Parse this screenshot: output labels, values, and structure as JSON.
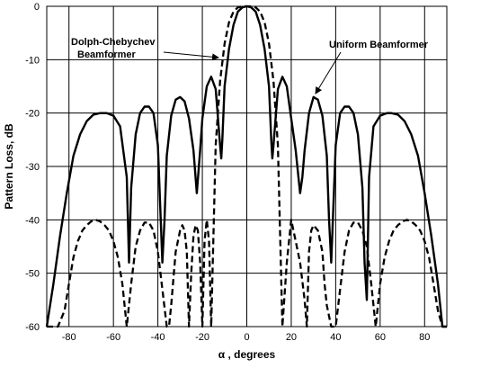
{
  "chart_data": {
    "type": "line",
    "title": "",
    "xlabel": "α , degrees",
    "ylabel": "Pattern Loss, dB",
    "xlim": [
      -90,
      90
    ],
    "ylim": [
      -60,
      0
    ],
    "xticks": [
      -80,
      -60,
      -40,
      -20,
      0,
      20,
      40,
      60,
      80
    ],
    "yticks": [
      0,
      -10,
      -20,
      -30,
      -40,
      -50,
      -60
    ],
    "grid": true,
    "legend": "none",
    "series": [
      {
        "name": "Uniform Beamformer",
        "style": "solid",
        "color": "#000000",
        "x": [
          -90,
          -87,
          -84,
          -81,
          -78,
          -75,
          -72,
          -69,
          -66,
          -63,
          -60,
          -57,
          -54,
          -53,
          -52,
          -50,
          -48,
          -46,
          -44,
          -42,
          -40,
          -38,
          -37,
          -36,
          -34,
          -32,
          -30,
          -28,
          -26,
          -24,
          -22.5,
          -21,
          -20,
          -18,
          -16,
          -14,
          -12,
          -11.5,
          -11,
          -10,
          -8,
          -6,
          -4,
          -2,
          0,
          2,
          4,
          6,
          8,
          10,
          11,
          11.5,
          12,
          14,
          16,
          18,
          20,
          22,
          24,
          25,
          26,
          28,
          30,
          32,
          34,
          36,
          37,
          38,
          40,
          42,
          44,
          46,
          48,
          50,
          52,
          53,
          54,
          55,
          57,
          60,
          63,
          65,
          68,
          71,
          74,
          77,
          80,
          83,
          86,
          88,
          90
        ],
        "y": [
          -60,
          -52,
          -43,
          -35,
          -28,
          -24,
          -21.5,
          -20.3,
          -20,
          -20,
          -20.5,
          -22.5,
          -32,
          -48,
          -34,
          -24,
          -20,
          -18.8,
          -18.8,
          -20,
          -26,
          -48,
          -40,
          -28,
          -20.5,
          -17.5,
          -17,
          -17.8,
          -21,
          -27,
          -35,
          -27,
          -21,
          -15,
          -13.2,
          -15.5,
          -26,
          -28.5,
          -25,
          -15,
          -8,
          -3.5,
          -1,
          -0.2,
          0,
          -0.2,
          -1,
          -3.5,
          -8,
          -15,
          -25,
          -28.5,
          -26,
          -15.5,
          -13.2,
          -15,
          -21,
          -27,
          -35,
          -32,
          -27,
          -20,
          -17,
          -17.5,
          -20.5,
          -28,
          -40,
          -48,
          -26,
          -20,
          -18.8,
          -18.8,
          -20,
          -24,
          -34,
          -48,
          -55,
          -32,
          -22.5,
          -20.5,
          -20,
          -20,
          -20.3,
          -21.5,
          -24,
          -28,
          -35,
          -43,
          -52,
          -60,
          -60
        ]
      },
      {
        "name": "Dolph-Chebychev Beamformer",
        "style": "dashed",
        "color": "#000000",
        "x": [
          -90,
          -87,
          -85,
          -82,
          -80,
          -78,
          -76,
          -74,
          -72,
          -70,
          -68,
          -66,
          -64,
          -62,
          -60,
          -58,
          -56,
          -54,
          -52,
          -50,
          -48,
          -46,
          -44,
          -42,
          -40,
          -38,
          -36,
          -35,
          -34,
          -32,
          -30,
          -29,
          -28,
          -27,
          -26,
          -25,
          -24,
          -23,
          -22,
          -21,
          -20,
          -19,
          -18,
          -17,
          -16,
          -14,
          -12,
          -10,
          -8,
          -6,
          -4,
          -2,
          0,
          2,
          4,
          6,
          8,
          10,
          12,
          14,
          16,
          18,
          20,
          22,
          24,
          26,
          27,
          28,
          29,
          30,
          32,
          34,
          35,
          36,
          38,
          40,
          42,
          44,
          46,
          48,
          50,
          52,
          54,
          56,
          58,
          60,
          62,
          64,
          66,
          68,
          70,
          72,
          74,
          76,
          78,
          80,
          82,
          84,
          86,
          88,
          90
        ],
        "y": [
          -60,
          -60,
          -60,
          -57,
          -52,
          -47,
          -44,
          -42,
          -41,
          -40.3,
          -40,
          -40.3,
          -41,
          -42,
          -44,
          -47,
          -52,
          -60,
          -52,
          -45,
          -42,
          -40.5,
          -40.5,
          -42,
          -46,
          -53,
          -60,
          -60,
          -56,
          -46,
          -42,
          -41,
          -42,
          -46,
          -60,
          -50,
          -43,
          -41,
          -42,
          -48,
          -60,
          -44,
          -40,
          -44,
          -60,
          -26,
          -14,
          -7,
          -3,
          -1,
          -0.2,
          0,
          0,
          0,
          -0.2,
          -1,
          -3,
          -7,
          -14,
          -26,
          -60,
          -48,
          -40,
          -44,
          -48,
          -55,
          -60,
          -46,
          -42,
          -41,
          -42,
          -46,
          -52,
          -56,
          -60,
          -60,
          -53,
          -46,
          -42,
          -40.5,
          -40.5,
          -42,
          -45,
          -52,
          -60,
          -52,
          -47,
          -44,
          -42,
          -41,
          -40.3,
          -40,
          -40.3,
          -41,
          -42,
          -44,
          -47,
          -52,
          -57,
          -60,
          -60
        ]
      }
    ],
    "annotations": [
      {
        "lines": [
          "Dolph-Chebychev",
          "Beamformer"
        ]
      },
      {
        "lines": [
          "Uniform Beamformer"
        ]
      }
    ]
  }
}
